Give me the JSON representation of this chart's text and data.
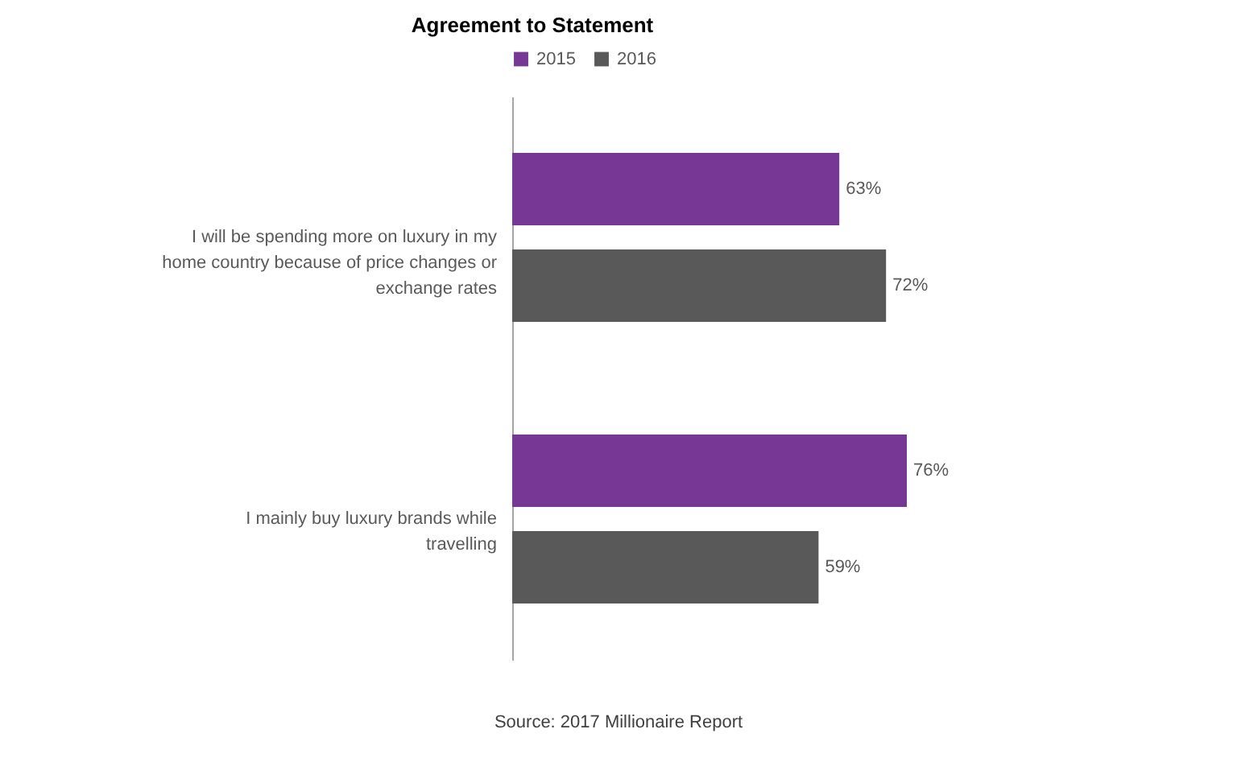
{
  "chart_data": {
    "type": "bar",
    "orientation": "horizontal",
    "title": "Agreement to Statement",
    "categories": [
      "I will be spending more on luxury in my home country because of price changes or exchange rates",
      "I mainly buy luxury brands while travelling"
    ],
    "series": [
      {
        "name": "2015",
        "color": "#773795",
        "values": [
          63,
          76
        ],
        "value_labels": [
          "63%",
          "76%"
        ]
      },
      {
        "name": "2016",
        "color": "#595959",
        "values": [
          72,
          59
        ],
        "value_labels": [
          "72%",
          "59%"
        ]
      }
    ],
    "legend": "top",
    "annotations": [
      "Source: 2017 Millionaire Report"
    ]
  }
}
